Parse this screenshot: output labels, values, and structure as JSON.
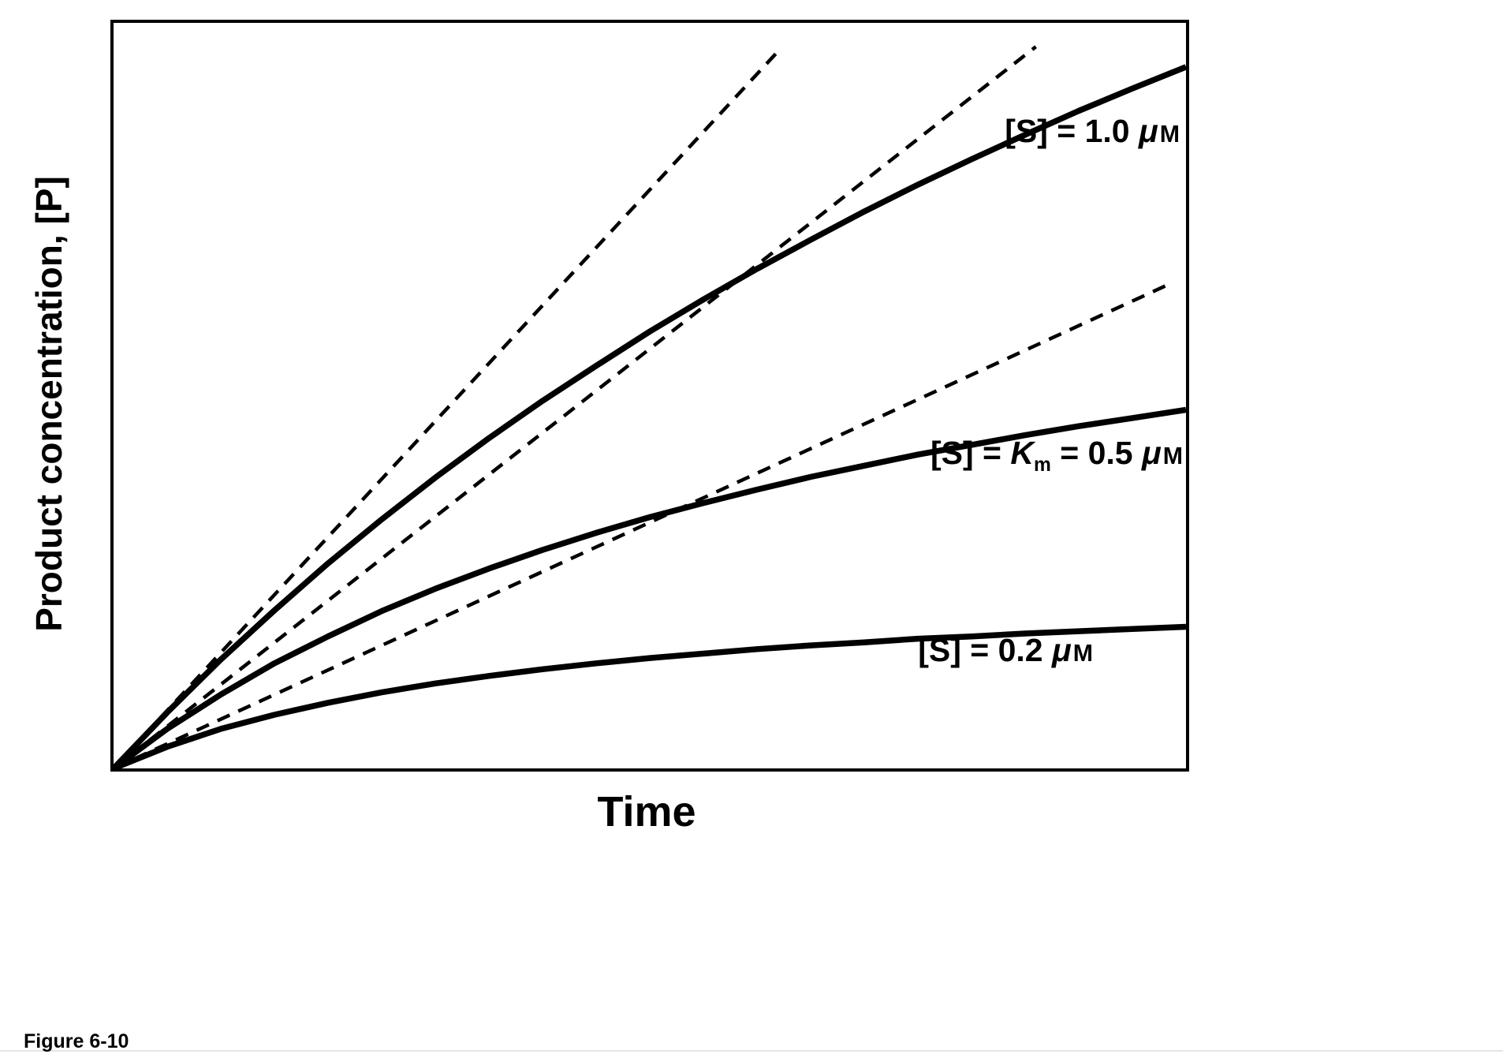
{
  "figure": {
    "caption": "Figure 6-10"
  },
  "colors": {
    "line": "#000000",
    "background": "#ffffff",
    "text": "#000000"
  },
  "axes": {
    "ticks": "none",
    "frame": true
  },
  "chart_data": {
    "type": "line",
    "title": "",
    "xlabel": "Time",
    "ylabel": "Product concentration, [P]",
    "x_range": [
      0,
      1
    ],
    "y_range": [
      0,
      1
    ],
    "grid": false,
    "legend": "inline-annotations",
    "series": [
      {
        "name": "progress-curve-S-1.0uM",
        "label": "[S] = 1.0 μM",
        "style": "solid",
        "initial_rate_slope": 1.55,
        "points": [
          [
            0,
            0
          ],
          [
            0.05,
            0.075
          ],
          [
            0.1,
            0.146
          ],
          [
            0.15,
            0.212
          ],
          [
            0.2,
            0.275
          ],
          [
            0.25,
            0.334
          ],
          [
            0.3,
            0.39
          ],
          [
            0.35,
            0.443
          ],
          [
            0.4,
            0.493
          ],
          [
            0.45,
            0.54
          ],
          [
            0.5,
            0.586
          ],
          [
            0.55,
            0.629
          ],
          [
            0.6,
            0.67
          ],
          [
            0.65,
            0.709
          ],
          [
            0.7,
            0.747
          ],
          [
            0.75,
            0.783
          ],
          [
            0.8,
            0.817
          ],
          [
            0.85,
            0.85
          ],
          [
            0.9,
            0.882
          ],
          [
            0.95,
            0.912
          ],
          [
            1,
            0.941
          ]
        ]
      },
      {
        "name": "progress-curve-S-0.5uM",
        "label": "[S] = Km = 0.5 μM",
        "style": "solid",
        "initial_rate_slope": 1.13,
        "points": [
          [
            0,
            0
          ],
          [
            0.05,
            0.053
          ],
          [
            0.1,
            0.099
          ],
          [
            0.15,
            0.141
          ],
          [
            0.2,
            0.177
          ],
          [
            0.25,
            0.211
          ],
          [
            0.3,
            0.241
          ],
          [
            0.35,
            0.268
          ],
          [
            0.4,
            0.293
          ],
          [
            0.45,
            0.316
          ],
          [
            0.5,
            0.337
          ],
          [
            0.55,
            0.356
          ],
          [
            0.6,
            0.374
          ],
          [
            0.65,
            0.391
          ],
          [
            0.7,
            0.406
          ],
          [
            0.75,
            0.421
          ],
          [
            0.8,
            0.434
          ],
          [
            0.85,
            0.447
          ],
          [
            0.9,
            0.459
          ],
          [
            0.95,
            0.47
          ],
          [
            1,
            0.481
          ]
        ]
      },
      {
        "name": "progress-curve-S-0.2uM",
        "label": "[S] = 0.2 μM",
        "style": "solid",
        "initial_rate_slope": 0.66,
        "points": [
          [
            0,
            0
          ],
          [
            0.05,
            0.029
          ],
          [
            0.1,
            0.053
          ],
          [
            0.15,
            0.072
          ],
          [
            0.2,
            0.088
          ],
          [
            0.25,
            0.102
          ],
          [
            0.3,
            0.114
          ],
          [
            0.35,
            0.124
          ],
          [
            0.4,
            0.133
          ],
          [
            0.45,
            0.141
          ],
          [
            0.5,
            0.148
          ],
          [
            0.55,
            0.154
          ],
          [
            0.6,
            0.16
          ],
          [
            0.65,
            0.165
          ],
          [
            0.7,
            0.169
          ],
          [
            0.75,
            0.174
          ],
          [
            0.8,
            0.177
          ],
          [
            0.85,
            0.181
          ],
          [
            0.9,
            0.184
          ],
          [
            0.95,
            0.187
          ],
          [
            1,
            0.19
          ]
        ]
      },
      {
        "name": "initial-rate-tangent-S-1.0uM",
        "label": "",
        "style": "dashed",
        "points": [
          [
            0,
            0
          ],
          [
            0.621,
            0.964
          ]
        ]
      },
      {
        "name": "initial-rate-tangent-S-0.5uM",
        "label": "",
        "style": "dashed",
        "points": [
          [
            0,
            0
          ],
          [
            0.86,
            0.968
          ]
        ]
      },
      {
        "name": "initial-rate-tangent-S-0.2uM",
        "label": "",
        "style": "dashed",
        "points": [
          [
            0,
            0
          ],
          [
            0.985,
            0.65
          ]
        ]
      }
    ],
    "annotations": [
      {
        "text": "[S] = 1.0 μM",
        "x": 0.9,
        "y": 0.84
      },
      {
        "text": "[S] = Km = 0.5 μM",
        "x": 0.88,
        "y": 0.41
      },
      {
        "text": "[S] = 0.2 μM",
        "x": 0.81,
        "y": 0.15
      }
    ]
  },
  "labels": {
    "s10": {
      "pre": "[S] = 1.0 ",
      "mu": "μ",
      "unit": "M"
    },
    "s05": {
      "pre": "[S] = ",
      "K": "K",
      "sub": "m",
      "mid": " = 0.5 ",
      "mu": "μ",
      "unit": "M"
    },
    "s02": {
      "pre": "[S] = 0.2 ",
      "mu": "μ",
      "unit": "M"
    }
  }
}
